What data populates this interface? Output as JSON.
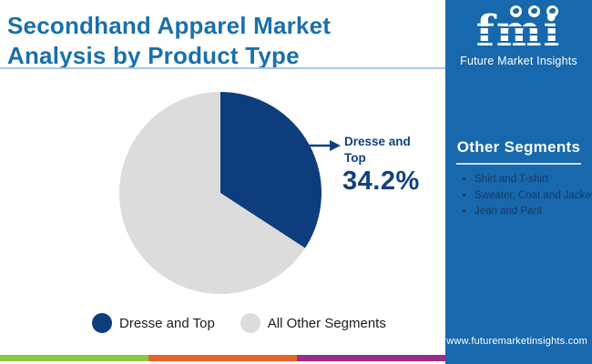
{
  "page": {
    "title": "Secondhand Apparel Market Analysis by Product Type"
  },
  "logo": {
    "acronym": "fmi",
    "subtitle": "Future Market Insights",
    "globe_icons": [
      "americas-globe-icon",
      "emea-globe-icon",
      "apac-globe-icon"
    ]
  },
  "sidebar": {
    "heading": "Other Segments",
    "items": [
      "Shirt and T-shirt",
      "Sweater, Coat and Jacket",
      "Jean and Pant"
    ],
    "footer_url": "www.futuremarketinsights.com"
  },
  "chart_data": {
    "type": "pie",
    "title": "Secondhand Apparel Market Analysis by Product Type",
    "categories": [
      "Dresse and Top",
      "All Other Segments"
    ],
    "values": [
      34.2,
      65.8
    ],
    "unit": "%",
    "slice_colors": [
      "#0e3d7d",
      "#dcdcdc"
    ],
    "start_angle_deg": 0,
    "direction": "clockwise",
    "annotation": {
      "label": "Dresse and Top",
      "value_label": "34.2%"
    },
    "legend_position": "bottom"
  },
  "colors": {
    "title_blue": "#1a70ab",
    "sidebar_blue": "#1768ad",
    "divider_blue": "#a9c6df",
    "callout_navy": "#11417f",
    "legend_text": "#1c1c1c",
    "sidebar_item_text": "#163a63",
    "strip": [
      "#8dc63f",
      "#e8632c",
      "#9c2b8a"
    ]
  }
}
